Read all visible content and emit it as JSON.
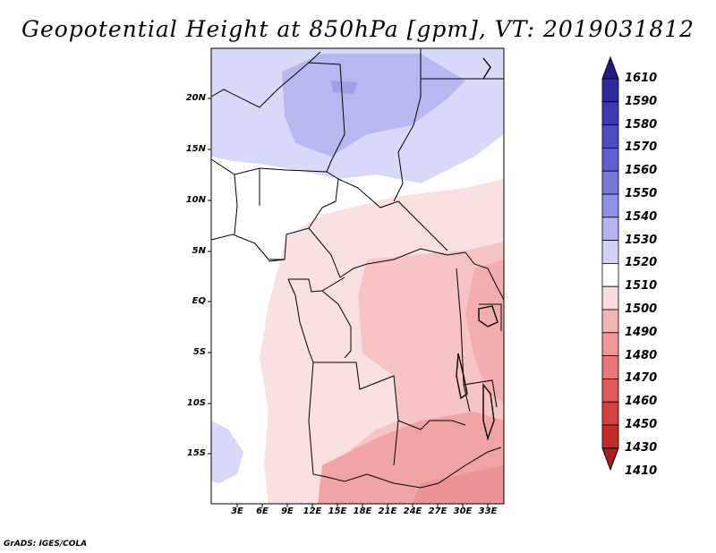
{
  "title": "Geopotential Height at 850hPa [gpm], VT: 2019031812",
  "credit": "GrADS: IGES/COLA",
  "lat_labels": [
    "20N",
    "15N",
    "10N",
    "5N",
    "EQ",
    "5S",
    "10S",
    "15S"
  ],
  "lon_labels": [
    "3E",
    "6E",
    "9E",
    "12E",
    "15E",
    "18E",
    "21E",
    "24E",
    "27E",
    "30E",
    "33E"
  ],
  "colorbar": {
    "labels": [
      "1610",
      "1590",
      "1580",
      "1570",
      "1560",
      "1550",
      "1540",
      "1530",
      "1520",
      "1510",
      "1500",
      "1490",
      "1480",
      "1470",
      "1460",
      "1450",
      "1430",
      "1410"
    ],
    "colors": [
      "#241a8a",
      "#2e2aa0",
      "#3b3ab4",
      "#4c4cc4",
      "#5f5fd2",
      "#7878dc",
      "#9090e6",
      "#b4b4f0",
      "#d2d2f8",
      "#ffffff",
      "#fadcdc",
      "#f5b4b4",
      "#f09898",
      "#e87878",
      "#e05a5a",
      "#d64040",
      "#c42a2a",
      "#a81e1e"
    ]
  }
}
